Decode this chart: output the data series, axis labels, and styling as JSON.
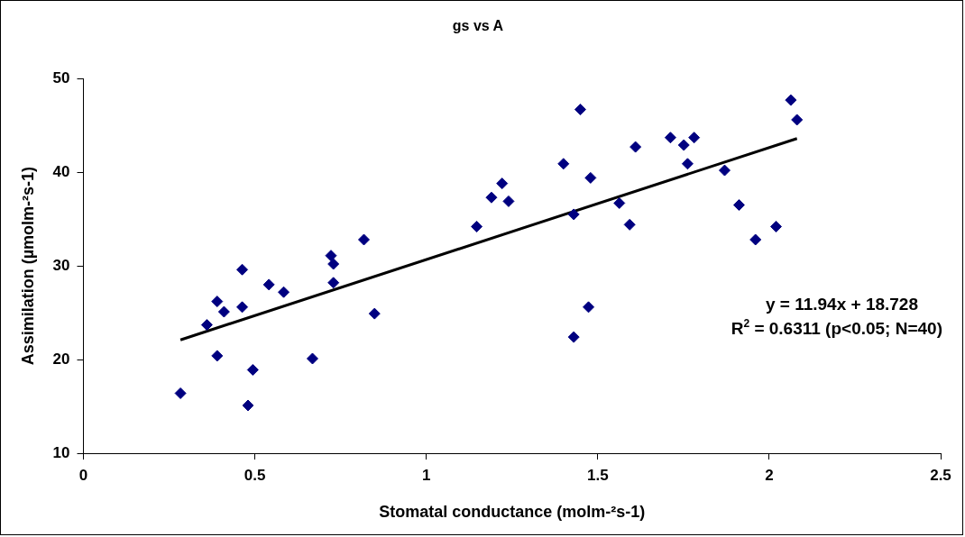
{
  "chart_data": {
    "type": "scatter",
    "title": "gs vs A",
    "xlabel": "Stomatal conductance (molm-²s-1)",
    "ylabel": "Assimilation (µmolm-²s-1)",
    "annotations": [
      "y = 11.94x + 18.728",
      "R$^{2}$ = 0.6311 (p<0.05; N=40)"
    ],
    "xlim": [
      0,
      2.5
    ],
    "xticks": [
      0,
      0.5,
      1,
      1.5,
      2,
      2.5
    ],
    "ylim": [
      10,
      50
    ],
    "yticks": [
      10,
      20,
      30,
      40,
      50
    ],
    "grid": false,
    "legend": false,
    "marker": "diamond",
    "series": [
      {
        "type": "scatter",
        "color": "#000080",
        "x": [
          0.283,
          0.36,
          0.39,
          0.41,
          0.39,
          0.463,
          0.463,
          0.48,
          0.494,
          0.541,
          0.584,
          0.668,
          0.722,
          0.729,
          0.729,
          0.818,
          0.849,
          1.147,
          1.19,
          1.221,
          1.24,
          1.4,
          1.43,
          1.449,
          1.479,
          1.473,
          1.43,
          1.563,
          1.593,
          1.61,
          1.712,
          1.751,
          1.781,
          1.762,
          1.87,
          1.912,
          1.96,
          2.02,
          2.063,
          2.081
        ],
        "values": [
          16.4,
          23.7,
          26.2,
          25.1,
          20.4,
          29.6,
          25.6,
          15.1,
          18.9,
          28.0,
          27.2,
          20.1,
          31.1,
          30.2,
          28.2,
          32.8,
          24.9,
          34.2,
          37.3,
          38.8,
          36.9,
          40.9,
          35.5,
          46.7,
          39.4,
          25.6,
          22.4,
          36.7,
          34.4,
          42.7,
          43.7,
          42.9,
          43.7,
          40.9,
          40.2,
          36.5,
          32.8,
          34.2,
          47.7,
          45.6
        ]
      },
      {
        "type": "line",
        "color": "#000000",
        "marker": "none",
        "x": [
          0.283,
          2.081
        ],
        "values": [
          22.1,
          43.6
        ]
      }
    ]
  }
}
